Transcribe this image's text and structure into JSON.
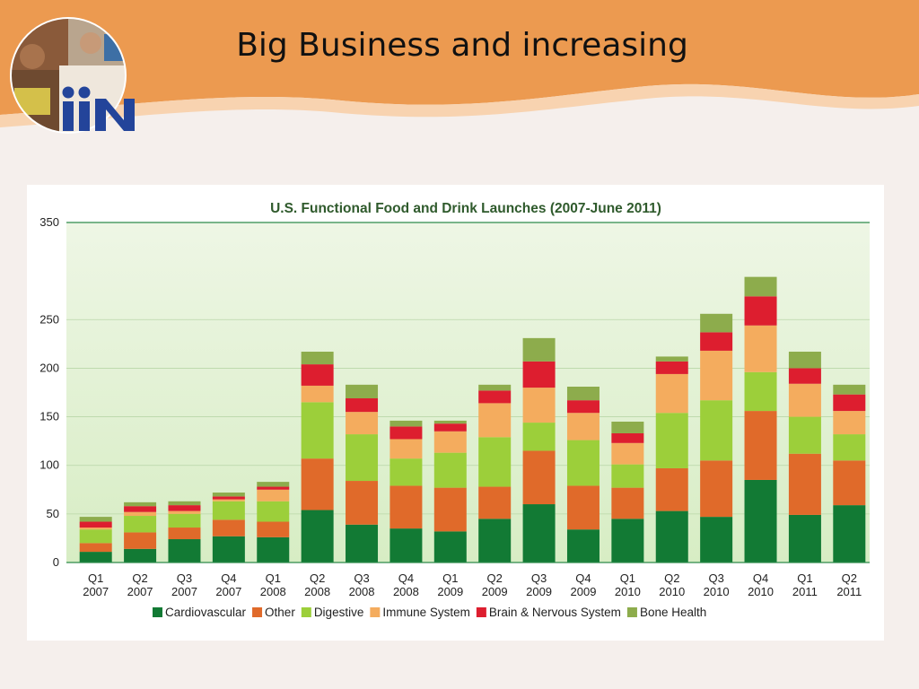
{
  "slide": {
    "title": "Big Business and increasing",
    "logo_text": "iiN"
  },
  "colors": {
    "banner": "#ec9a50",
    "banner_light": "#f8d3b0",
    "background": "#f5efec",
    "logo_blue": "#23449a",
    "axis_green": "#2d8a4a",
    "plot_bg_top": "#eef6e5",
    "plot_bg_bottom": "#d7edc4"
  },
  "chart_data": {
    "type": "bar",
    "stacked": true,
    "title": "U.S. Functional Food and Drink Launches (2007-June 2011)",
    "xlabel": "",
    "ylabel": "",
    "ylim": [
      0,
      350
    ],
    "yticks": [
      0,
      50,
      100,
      150,
      200,
      250,
      350
    ],
    "grid": true,
    "legend_position": "bottom",
    "categories": [
      [
        "Q1",
        "2007"
      ],
      [
        "Q2",
        "2007"
      ],
      [
        "Q3",
        "2007"
      ],
      [
        "Q4",
        "2007"
      ],
      [
        "Q1",
        "2008"
      ],
      [
        "Q2",
        "2008"
      ],
      [
        "Q3",
        "2008"
      ],
      [
        "Q4",
        "2008"
      ],
      [
        "Q1",
        "2009"
      ],
      [
        "Q2",
        "2009"
      ],
      [
        "Q3",
        "2009"
      ],
      [
        "Q4",
        "2009"
      ],
      [
        "Q1",
        "2010"
      ],
      [
        "Q2",
        "2010"
      ],
      [
        "Q3",
        "2010"
      ],
      [
        "Q4",
        "2010"
      ],
      [
        "Q1",
        "2011"
      ],
      [
        "Q2",
        "2011"
      ]
    ],
    "series": [
      {
        "name": "Cardiovascular",
        "color": "#127a34",
        "values": [
          11,
          14,
          24,
          27,
          26,
          54,
          39,
          35,
          32,
          45,
          60,
          34,
          45,
          53,
          47,
          85,
          49,
          59
        ]
      },
      {
        "name": "Other",
        "color": "#e06a2a",
        "values": [
          9,
          17,
          12,
          17,
          16,
          53,
          45,
          44,
          45,
          33,
          55,
          45,
          32,
          44,
          58,
          71,
          63,
          46
        ]
      },
      {
        "name": "Digestive",
        "color": "#9ccf3a",
        "values": [
          14,
          17,
          14,
          19,
          21,
          58,
          48,
          28,
          36,
          51,
          29,
          47,
          24,
          57,
          62,
          40,
          38,
          27
        ]
      },
      {
        "name": "Immune System",
        "color": "#f4ac5e",
        "values": [
          2,
          4,
          3,
          2,
          12,
          17,
          23,
          20,
          22,
          35,
          36,
          28,
          22,
          40,
          51,
          48,
          34,
          24
        ]
      },
      {
        "name": "Brain & Nervous System",
        "color": "#dd1e2f",
        "values": [
          6,
          6,
          6,
          3,
          3,
          22,
          14,
          13,
          8,
          13,
          27,
          13,
          10,
          13,
          19,
          30,
          16,
          17
        ]
      },
      {
        "name": "Bone Health",
        "color": "#8dac4c",
        "values": [
          5,
          4,
          4,
          4,
          5,
          13,
          14,
          6,
          3,
          6,
          24,
          14,
          12,
          5,
          19,
          20,
          17,
          10
        ]
      }
    ]
  }
}
